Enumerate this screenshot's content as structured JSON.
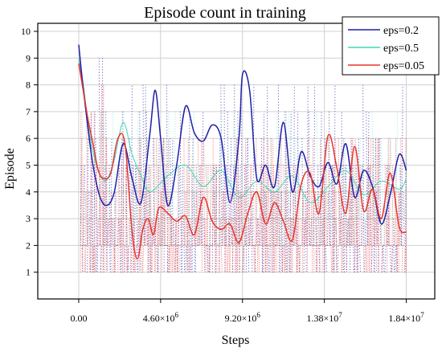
{
  "chart_data": {
    "type": "line",
    "title": "Episode count in training",
    "xlabel": "Steps",
    "ylabel": "Episode",
    "xlim": [
      -2300000,
      20000000
    ],
    "ylim": [
      0,
      10.3
    ],
    "x_ticks": [
      {
        "value": 0,
        "label": "0.00",
        "mantissa": "",
        "exponent": ""
      },
      {
        "value": 4600000,
        "label": "",
        "mantissa": "4.60×10",
        "exponent": "6"
      },
      {
        "value": 9200000,
        "label": "",
        "mantissa": "9.20×10",
        "exponent": "6"
      },
      {
        "value": 13800000,
        "label": "",
        "mantissa": "1.38×10",
        "exponent": "7"
      },
      {
        "value": 18400000,
        "label": "",
        "mantissa": "1.84×10",
        "exponent": "7"
      }
    ],
    "y_ticks": [
      {
        "value": 1,
        "label": "1"
      },
      {
        "value": 2,
        "label": "2"
      },
      {
        "value": 3,
        "label": "3"
      },
      {
        "value": 4,
        "label": "4"
      },
      {
        "value": 5,
        "label": "5"
      },
      {
        "value": 6,
        "label": "6"
      },
      {
        "value": 7,
        "label": "7"
      },
      {
        "value": 8,
        "label": "8"
      },
      {
        "value": 9,
        "label": "9"
      },
      {
        "value": 10,
        "label": "10"
      }
    ],
    "grid": true,
    "legend_position": "top-right",
    "series": [
      {
        "name": "eps=0.2",
        "color": "#1f1fa8",
        "x": [
          0,
          200000,
          500000,
          800000,
          1200000,
          1600000,
          2000000,
          2500000,
          3000000,
          3500000,
          4000000,
          4300000,
          4600000,
          5000000,
          5500000,
          6000000,
          6500000,
          7000000,
          7500000,
          8000000,
          8500000,
          9000000,
          9200000,
          9600000,
          10000000,
          10500000,
          11000000,
          11500000,
          12000000,
          12500000,
          13000000,
          13500000,
          14000000,
          14500000,
          15000000,
          15500000,
          16000000,
          16500000,
          17000000,
          17500000,
          18000000,
          18400000
        ],
        "y": [
          9.5,
          8.2,
          6.5,
          5.0,
          3.8,
          3.5,
          4.0,
          5.8,
          4.5,
          3.6,
          6.2,
          7.8,
          6.0,
          3.5,
          5.0,
          7.2,
          6.2,
          5.9,
          6.5,
          6.0,
          3.6,
          6.0,
          8.4,
          7.8,
          4.5,
          5.0,
          4.2,
          6.6,
          4.0,
          5.5,
          4.6,
          4.2,
          5.1,
          4.3,
          5.8,
          3.8,
          4.8,
          4.2,
          2.8,
          3.9,
          5.4,
          4.8
        ]
      },
      {
        "name": "eps=0.5",
        "color": "#3fd8b8",
        "x": [
          0,
          300000,
          600000,
          1000000,
          1500000,
          2000000,
          2500000,
          3000000,
          3500000,
          4000000,
          5000000,
          6000000,
          7000000,
          8000000,
          9000000,
          10000000,
          11000000,
          12000000,
          13000000,
          14000000,
          15000000,
          16000000,
          17000000,
          18000000,
          18400000
        ],
        "y": [
          9.0,
          7.8,
          6.2,
          5.0,
          4.4,
          5.2,
          6.6,
          5.4,
          4.6,
          4.0,
          4.6,
          5.0,
          4.2,
          4.8,
          3.8,
          4.4,
          4.0,
          4.6,
          3.6,
          4.2,
          4.8,
          3.9,
          4.4,
          4.1,
          4.5
        ]
      },
      {
        "name": "eps=0.05",
        "color": "#e8342c",
        "x": [
          0,
          200000,
          500000,
          800000,
          1100000,
          1400000,
          1800000,
          2200000,
          2600000,
          3000000,
          3300000,
          3600000,
          3900000,
          4200000,
          4500000,
          5000000,
          5500000,
          6000000,
          6500000,
          7000000,
          7500000,
          8000000,
          8500000,
          9000000,
          9500000,
          10000000,
          10500000,
          11000000,
          11500000,
          12000000,
          12500000,
          13000000,
          13500000,
          14000000,
          14500000,
          15000000,
          15500000,
          16000000,
          16500000,
          17000000,
          17500000,
          18000000,
          18400000
        ],
        "y": [
          8.8,
          8.0,
          6.8,
          5.8,
          4.8,
          4.5,
          4.7,
          6.0,
          5.8,
          2.5,
          1.5,
          2.6,
          3.0,
          2.4,
          3.4,
          3.2,
          2.9,
          3.1,
          2.4,
          3.8,
          2.9,
          2.6,
          2.8,
          2.1,
          3.2,
          4.0,
          2.8,
          3.6,
          2.9,
          2.2,
          4.3,
          4.7,
          3.2,
          6.1,
          4.9,
          3.2,
          5.7,
          3.3,
          4.1,
          3.0,
          4.7,
          2.7,
          2.5
        ]
      }
    ]
  }
}
